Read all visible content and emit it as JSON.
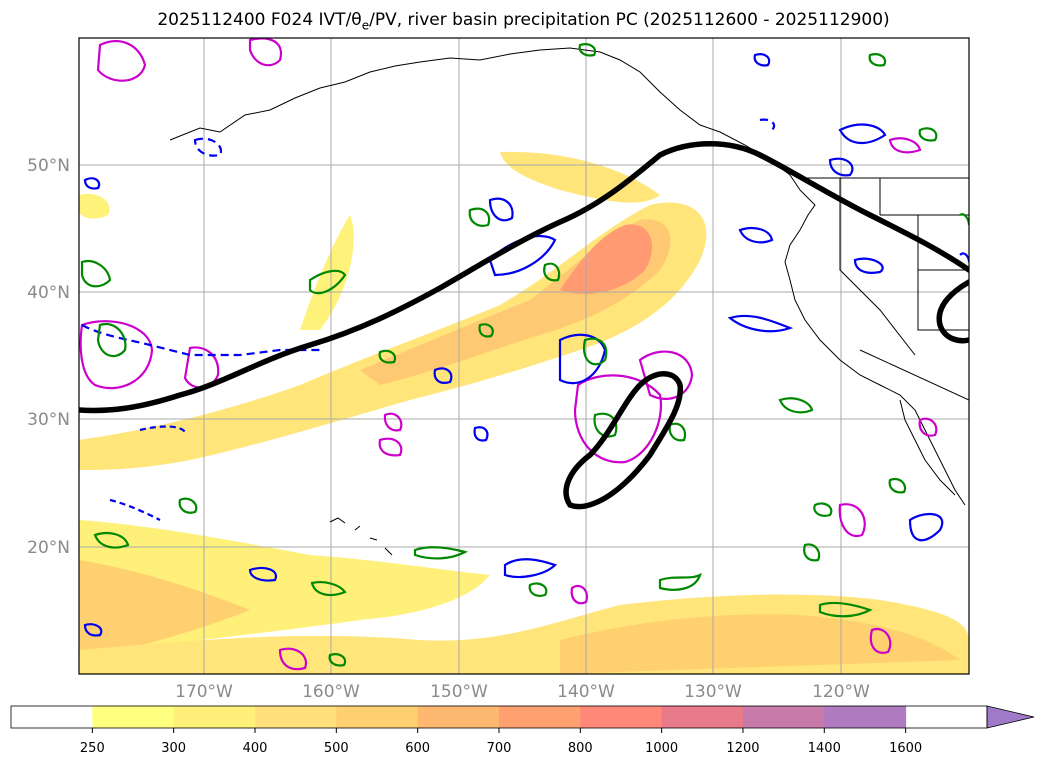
{
  "title": {
    "prefix": "2025112400 F024 IVT/",
    "theta_symbol": "θ",
    "theta_sub": "e",
    "suffix": "/PV, river basin precipitation PC (2025112600 - 2025112900)"
  },
  "map": {
    "lat_ticks": [
      "50°N",
      "40°N",
      "30°N",
      "20°N"
    ],
    "lon_ticks": [
      "170°W",
      "160°W",
      "150°W",
      "140°W",
      "130°W",
      "120°W"
    ],
    "grid": true
  },
  "colorbar": {
    "levels": [
      "250",
      "300",
      "400",
      "500",
      "600",
      "700",
      "800",
      "1000",
      "1200",
      "1400",
      "1600"
    ],
    "colors": [
      "#ffffff",
      "#ffff80",
      "#fff07a",
      "#ffe07a",
      "#ffd070",
      "#ffb870",
      "#ffa070",
      "#ff8878",
      "#e87a8a",
      "#c87aaa",
      "#b07ac0",
      "#a07ac8"
    ],
    "extend": "max"
  },
  "legend_colors": {
    "black": "#000000",
    "blue": "#0000ee",
    "green": "#008800",
    "magenta": "#cc00cc"
  }
}
